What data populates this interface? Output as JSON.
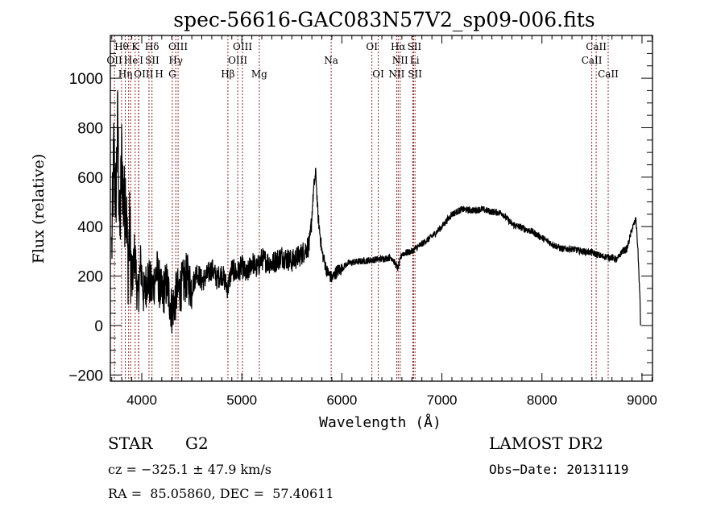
{
  "chart_data": {
    "type": "line",
    "title": "spec-56616-GAC083N57V2_sp09-006.fits",
    "xlabel": "Wavelength (Å)",
    "ylabel": "Flux (relative)",
    "xlim": [
      3686,
      9105
    ],
    "ylim": [
      -225,
      1173
    ],
    "xticks": [
      4000,
      5000,
      6000,
      7000,
      8000,
      9000
    ],
    "xtick_labels": [
      "4000",
      "5000",
      "6000",
      "7000",
      "8000",
      "9000"
    ],
    "yticks": [
      -200,
      0,
      200,
      400,
      600,
      800,
      1000
    ],
    "ytick_labels": [
      "−200",
      "0",
      "200",
      "400",
      "600",
      "800",
      "1000"
    ],
    "line_color": "#000000",
    "marker_color": "#8b2a2a",
    "grid": false,
    "series": [
      {
        "name": "flux",
        "anchors": [
          [
            3700,
            300
          ],
          [
            3720,
            700
          ],
          [
            3740,
            500
          ],
          [
            3760,
            820
          ],
          [
            3780,
            350
          ],
          [
            3800,
            700
          ],
          [
            3820,
            450
          ],
          [
            3840,
            550
          ],
          [
            3860,
            250
          ],
          [
            3880,
            380
          ],
          [
            3900,
            150
          ],
          [
            3930,
            300
          ],
          [
            3960,
            100
          ],
          [
            3990,
            250
          ],
          [
            4020,
            120
          ],
          [
            4060,
            200
          ],
          [
            4100,
            140
          ],
          [
            4150,
            220
          ],
          [
            4200,
            120
          ],
          [
            4250,
            170
          ],
          [
            4300,
            60
          ],
          [
            4350,
            130
          ],
          [
            4400,
            160
          ],
          [
            4450,
            200
          ],
          [
            4500,
            150
          ],
          [
            4550,
            220
          ],
          [
            4600,
            180
          ],
          [
            4650,
            200
          ],
          [
            4700,
            230
          ],
          [
            4750,
            190
          ],
          [
            4800,
            210
          ],
          [
            4860,
            150
          ],
          [
            4900,
            230
          ],
          [
            4950,
            210
          ],
          [
            5000,
            240
          ],
          [
            5050,
            200
          ],
          [
            5100,
            260
          ],
          [
            5150,
            230
          ],
          [
            5200,
            270
          ],
          [
            5300,
            250
          ],
          [
            5400,
            280
          ],
          [
            5500,
            260
          ],
          [
            5600,
            290
          ],
          [
            5680,
            330
          ],
          [
            5720,
            560
          ],
          [
            5740,
            620
          ],
          [
            5760,
            450
          ],
          [
            5800,
            300
          ],
          [
            5850,
            220
          ],
          [
            5900,
            190
          ],
          [
            5950,
            220
          ],
          [
            6000,
            230
          ],
          [
            6050,
            250
          ],
          [
            6100,
            255
          ],
          [
            6200,
            260
          ],
          [
            6300,
            265
          ],
          [
            6400,
            270
          ],
          [
            6500,
            275
          ],
          [
            6560,
            230
          ],
          [
            6600,
            290
          ],
          [
            6700,
            300
          ],
          [
            6800,
            330
          ],
          [
            6900,
            360
          ],
          [
            7000,
            400
          ],
          [
            7100,
            450
          ],
          [
            7200,
            470
          ],
          [
            7300,
            465
          ],
          [
            7400,
            470
          ],
          [
            7500,
            460
          ],
          [
            7600,
            455
          ],
          [
            7700,
            410
          ],
          [
            7800,
            395
          ],
          [
            7900,
            380
          ],
          [
            8000,
            355
          ],
          [
            8100,
            330
          ],
          [
            8200,
            310
          ],
          [
            8300,
            310
          ],
          [
            8400,
            300
          ],
          [
            8500,
            295
          ],
          [
            8600,
            280
          ],
          [
            8700,
            275
          ],
          [
            8750,
            265
          ],
          [
            8800,
            300
          ],
          [
            8850,
            310
          ],
          [
            8900,
            390
          ],
          [
            8940,
            430
          ],
          [
            8960,
            300
          ],
          [
            8980,
            100
          ]
        ]
      }
    ],
    "line_markers": [
      {
        "label": "Hθ",
        "wavelength": 3798,
        "row": 1
      },
      {
        "label": "K",
        "wavelength": 3934,
        "row": 1
      },
      {
        "label": "Hδ",
        "wavelength": 4102,
        "row": 1
      },
      {
        "label": "OIII",
        "wavelength": 4363,
        "row": 1
      },
      {
        "label": "OIII",
        "wavelength": 5007,
        "row": 1
      },
      {
        "label": "OI",
        "wavelength": 6300,
        "row": 1
      },
      {
        "label": "Hα",
        "wavelength": 6563,
        "row": 1
      },
      {
        "label": "SII",
        "wavelength": 6717,
        "row": 1
      },
      {
        "label": "CaII",
        "wavelength": 8542,
        "row": 1
      },
      {
        "label": "OII",
        "wavelength": 3727,
        "row": 2
      },
      {
        "label": "He",
        "wavelength": 3889,
        "row": 2
      },
      {
        "label": "I",
        "wavelength": 3970,
        "row": 2
      },
      {
        "label": "SII",
        "wavelength": 4072,
        "row": 2
      },
      {
        "label": "Hγ",
        "wavelength": 4340,
        "row": 2
      },
      {
        "label": "OIII",
        "wavelength": 4959,
        "row": 2
      },
      {
        "label": "Na",
        "wavelength": 5893,
        "row": 2
      },
      {
        "label": "NII",
        "wavelength": 6583,
        "row": 2
      },
      {
        "label": "Li",
        "wavelength": 6708,
        "row": 2
      },
      {
        "label": "CaII",
        "wavelength": 8498,
        "row": 2
      },
      {
        "label": "OIII",
        "wavelength": 3869,
        "row": 3
      },
      {
        "label": "Hη",
        "wavelength": 3835,
        "row": 3
      },
      {
        "label": "H",
        "wavelength": 3968,
        "row": 3
      },
      {
        "label": "G",
        "wavelength": 4305,
        "row": 3
      },
      {
        "label": "Hβ",
        "wavelength": 4861,
        "row": 3
      },
      {
        "label": "Mg",
        "wavelength": 5175,
        "row": 3
      },
      {
        "label": "OI",
        "wavelength": 6364,
        "row": 3
      },
      {
        "label": "NII",
        "wavelength": 6548,
        "row": 3
      },
      {
        "label": "SII",
        "wavelength": 6731,
        "row": 3
      },
      {
        "label": "CaII",
        "wavelength": 8662,
        "row": 3
      }
    ]
  },
  "info": {
    "object_class": "STAR",
    "subclass": "G2",
    "redshift": "cz = −325.1 ± 47.9 km/s",
    "coords": "RA =  85.05860, DEC =  57.40611",
    "survey": "LAMOST DR2",
    "obs_date": "Obs−Date: 20131119"
  }
}
